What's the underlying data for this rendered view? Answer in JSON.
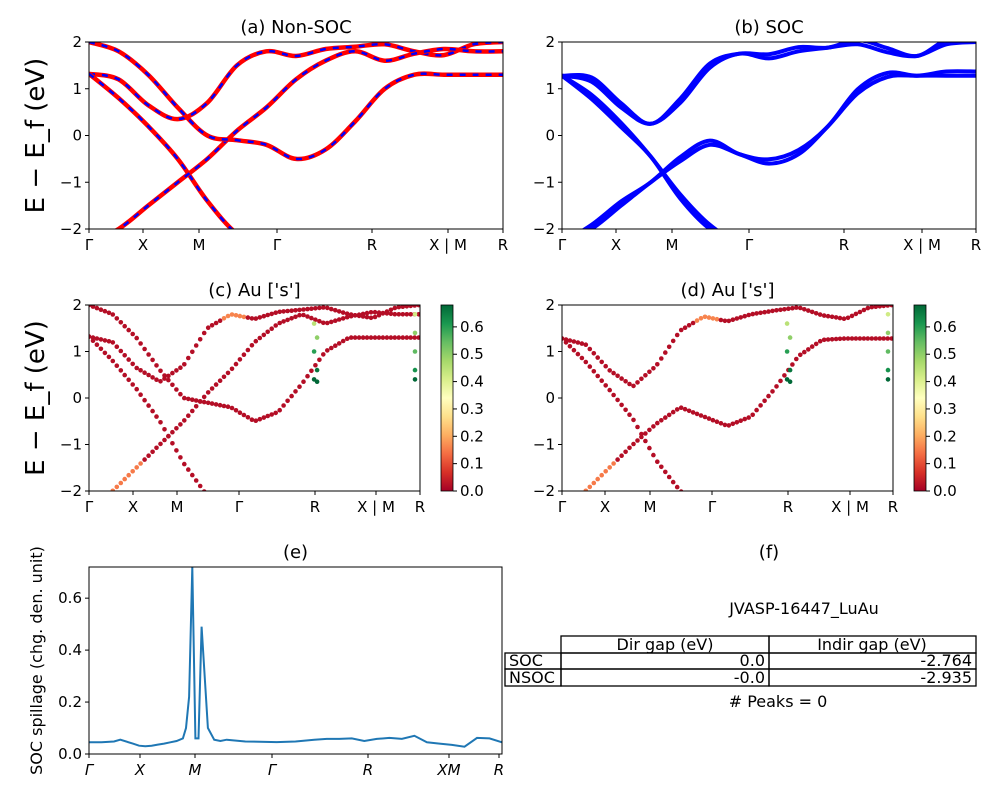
{
  "chart_data": [
    {
      "panel": "a",
      "type": "line",
      "title": "(a) Non-SOC",
      "ylabel": "E − E_f (eV)",
      "ylim": [
        -2,
        2
      ],
      "yticks": [
        "−2",
        "−1",
        "0",
        "1",
        "2"
      ],
      "xticks": [
        "Γ",
        "X",
        "M",
        "Γ",
        "R",
        "X | M",
        "R"
      ],
      "series_colors": {
        "soc": "#0000ff",
        "non_soc": "#ff0000"
      },
      "x": [
        0,
        0.5,
        1,
        1.5,
        2,
        2.5,
        3,
        3.5,
        4,
        4.5,
        5,
        5.5,
        6,
        6.5,
        7
      ],
      "series": [
        {
          "color": "#ff0000",
          "values": [
            1.32,
            1.2,
            0.65,
            0.35,
            0.7,
            1.5,
            1.8,
            1.7,
            1.85,
            1.9,
            1.95,
            1.8,
            1.72,
            1.95,
            2.0
          ]
        },
        {
          "color": "#ff0000",
          "values": [
            1.32,
            0.8,
            0.2,
            -0.5,
            -1.4,
            -2.1,
            -2.4,
            -2.5,
            -2.5,
            -2.5,
            -2.5,
            -2.5,
            -2.5,
            -2.5,
            -2.5
          ]
        },
        {
          "color": "#ff0000",
          "values": [
            -2.3,
            -2.0,
            -1.5,
            -1.0,
            -0.5,
            0.1,
            0.6,
            1.2,
            1.6,
            1.8,
            1.6,
            1.75,
            1.85,
            1.8,
            1.8
          ]
        },
        {
          "color": "#ff0000",
          "values": [
            2.0,
            1.8,
            1.3,
            0.6,
            0.0,
            -0.1,
            -0.2,
            -0.5,
            -0.3,
            0.3,
            1.0,
            1.3,
            1.3,
            1.3,
            1.3
          ]
        }
      ]
    },
    {
      "panel": "b",
      "type": "line",
      "title": "(b) SOC",
      "ylim": [
        -2,
        2
      ],
      "yticks": [
        "−2",
        "−1",
        "0",
        "1",
        "2"
      ],
      "xticks": [
        "Γ",
        "X",
        "M",
        "Γ",
        "R",
        "X | M",
        "R"
      ],
      "series": [
        {
          "values": [
            1.28,
            1.15,
            0.6,
            0.25,
            0.7,
            1.45,
            1.75,
            1.65,
            1.8,
            1.88,
            1.95,
            1.78,
            1.7,
            1.95,
            2.0
          ]
        },
        {
          "values": [
            1.28,
            0.78,
            0.18,
            -0.45,
            -1.35,
            -2.0,
            -2.3,
            -2.5,
            -2.5,
            -2.5,
            -2.5,
            -2.5,
            -2.5,
            -2.5,
            -2.5
          ]
        },
        {
          "values": [
            -2.3,
            -2.0,
            -1.5,
            -1.0,
            -0.55,
            -0.2,
            -0.4,
            -0.6,
            -0.4,
            0.2,
            0.9,
            1.25,
            1.28,
            1.28,
            1.28
          ]
        }
      ]
    },
    {
      "panel": "c",
      "type": "scatter",
      "title": "(c)  Au ['s']",
      "ylabel": "E − E_f (eV)",
      "ylim": [
        -2,
        2
      ],
      "yticks": [
        "−2",
        "−1",
        "0",
        "1",
        "2"
      ],
      "xticks": [
        "Γ",
        "X",
        "M",
        "Γ",
        "R",
        "X | M",
        "R"
      ],
      "colorbar": {
        "ticks": [
          "0.0",
          "0.1",
          "0.2",
          "0.3",
          "0.4",
          "0.5",
          "0.6"
        ],
        "range": [
          0.0,
          0.68
        ],
        "cmap": "RdYlGn"
      }
    },
    {
      "panel": "d",
      "type": "scatter",
      "title": "(d) Au ['s']",
      "ylim": [
        -2,
        2
      ],
      "yticks": [
        "−2",
        "−1",
        "0",
        "1",
        "2"
      ],
      "xticks": [
        "Γ",
        "X",
        "M",
        "Γ",
        "R",
        "X | M",
        "R"
      ],
      "colorbar": {
        "ticks": [
          "0.0",
          "0.1",
          "0.2",
          "0.3",
          "0.4",
          "0.5",
          "0.6"
        ],
        "range": [
          0.0,
          0.68
        ],
        "cmap": "RdYlGn"
      }
    },
    {
      "panel": "e",
      "type": "line",
      "title": "(e)",
      "ylabel": "SOC spillage (chg. den. unit)",
      "ylim": [
        0.0,
        0.72
      ],
      "yticks": [
        "0.0",
        "0.2",
        "0.4",
        "0.6"
      ],
      "xticks": [
        "Γ",
        "X",
        "M",
        "Γ",
        "R",
        "XM",
        "R"
      ],
      "line_color": "#1f77b4",
      "x": [
        0,
        0.2,
        0.4,
        0.5,
        0.7,
        0.8,
        0.9,
        1.0,
        1.1,
        1.2,
        1.3,
        1.4,
        1.5,
        1.55,
        1.6,
        1.65,
        1.7,
        1.75,
        1.8,
        1.9,
        2.0,
        2.1,
        2.2,
        2.5,
        3.0,
        3.3,
        3.6,
        3.8,
        4.0,
        4.2,
        4.4,
        4.6,
        4.8,
        5.0,
        5.2,
        5.4,
        5.6,
        5.8,
        6.0,
        6.2,
        6.4,
        6.6
      ],
      "values": [
        0.045,
        0.045,
        0.048,
        0.055,
        0.04,
        0.032,
        0.03,
        0.032,
        0.036,
        0.04,
        0.045,
        0.05,
        0.06,
        0.1,
        0.22,
        0.72,
        0.06,
        0.06,
        0.49,
        0.1,
        0.055,
        0.05,
        0.055,
        0.048,
        0.046,
        0.048,
        0.055,
        0.058,
        0.058,
        0.06,
        0.05,
        0.058,
        0.062,
        0.058,
        0.07,
        0.045,
        0.04,
        0.035,
        0.028,
        0.062,
        0.06,
        0.045
      ]
    }
  ],
  "panel_f": {
    "title": "(f)",
    "material": "JVASP-16447_LuAu",
    "table": {
      "headers": [
        "",
        "Dir gap (eV)",
        "Indir gap (eV)"
      ],
      "rows": [
        {
          "label": "SOC",
          "dir": "0.0",
          "indir": "-2.764"
        },
        {
          "label": "NSOC",
          "dir": "-0.0",
          "indir": "-2.935"
        }
      ]
    },
    "peaks": "# Peaks = 0"
  }
}
